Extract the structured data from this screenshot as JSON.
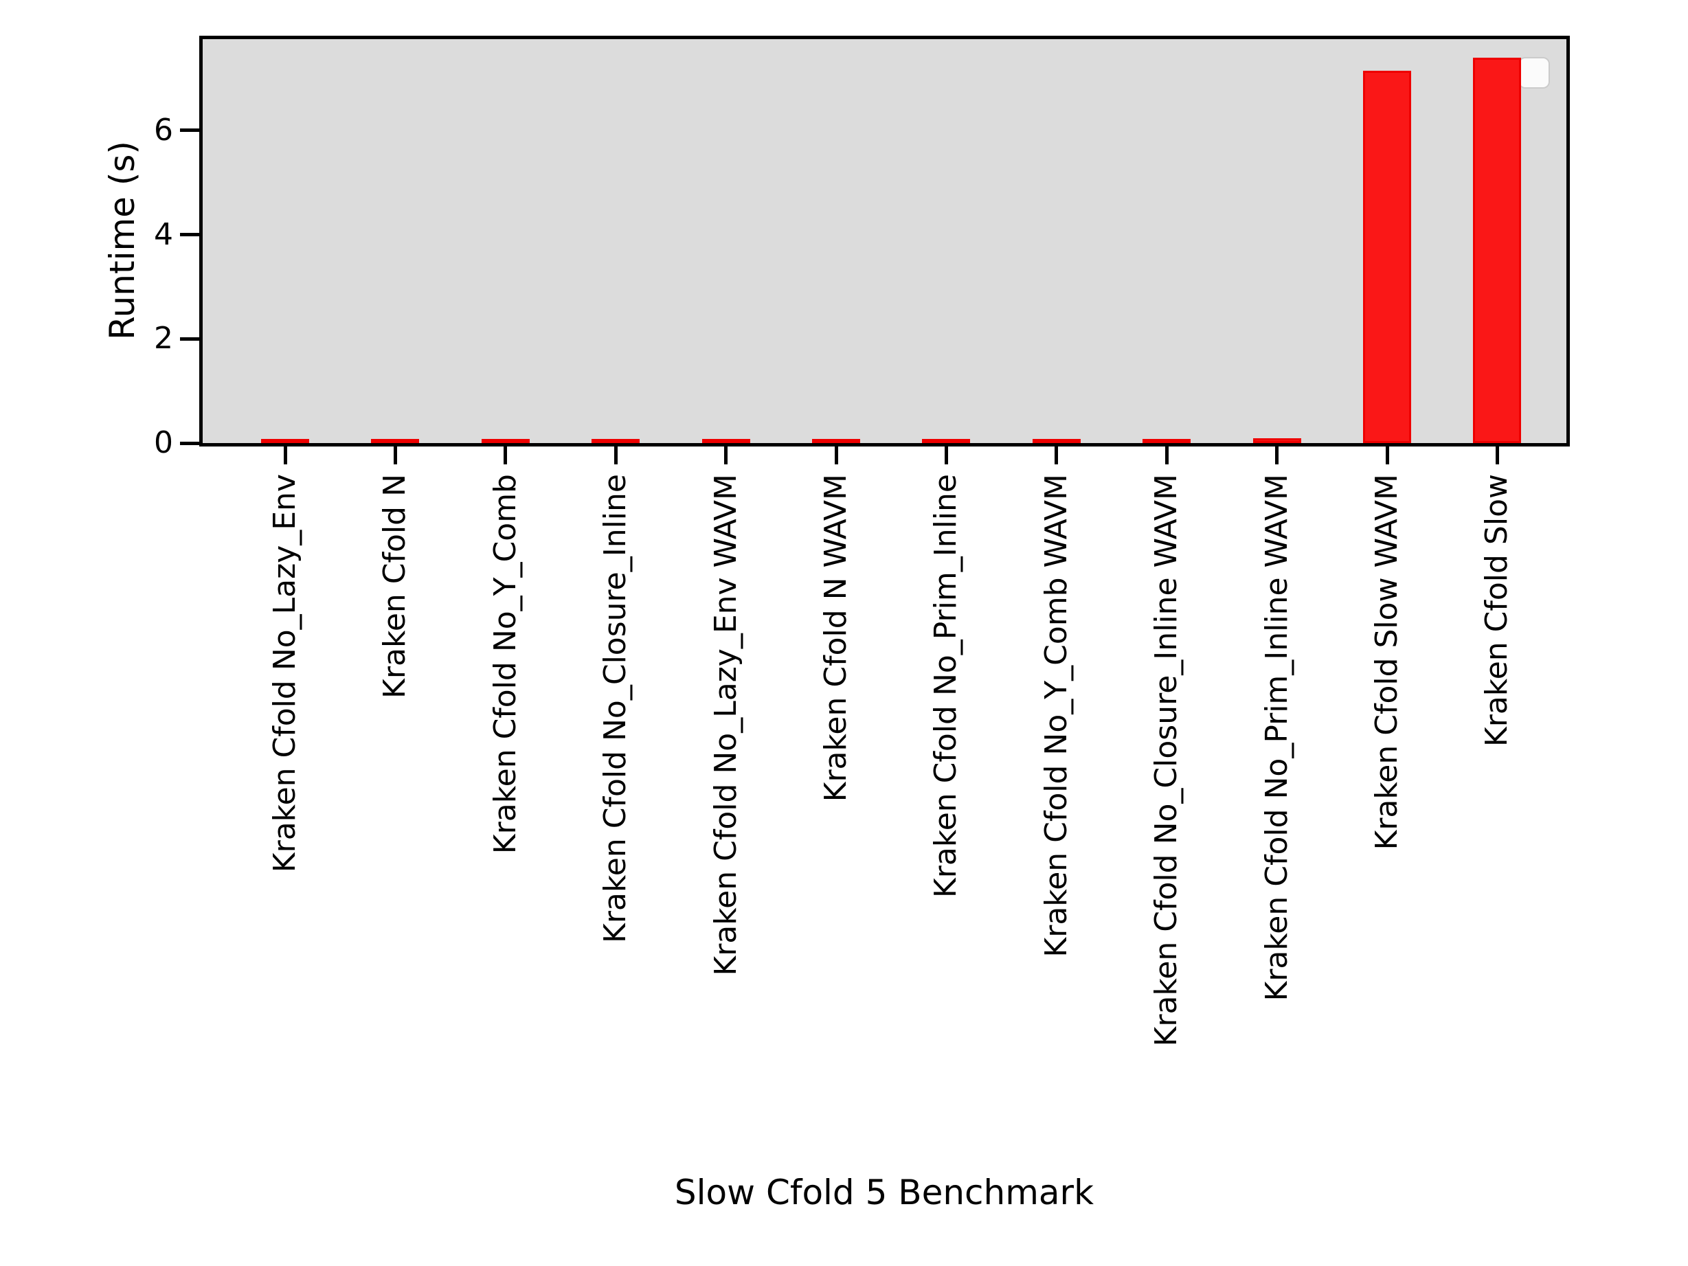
{
  "chart_data": {
    "type": "bar",
    "title": "",
    "xlabel": "Slow Cfold 5 Benchmark",
    "ylabel": "Runtime (s)",
    "categories": [
      "Kraken Cfold No_Lazy_Env",
      "Kraken Cfold N",
      "Kraken Cfold No_Y_Comb",
      "Kraken Cfold No_Closure_Inline",
      "Kraken Cfold No_Lazy_Env WAVM",
      "Kraken Cfold N WAVM",
      "Kraken Cfold No_Prim_Inline",
      "Kraken Cfold No_Y_Comb WAVM",
      "Kraken Cfold No_Closure_Inline WAVM",
      "Kraken Cfold No_Prim_Inline WAVM",
      "Kraken Cfold Slow WAVM",
      "Kraken Cfold Slow"
    ],
    "values": [
      0.04,
      0.04,
      0.04,
      0.05,
      0.06,
      0.06,
      0.06,
      0.06,
      0.08,
      0.09,
      7.15,
      7.4
    ],
    "yticks": [
      0,
      2,
      4,
      6
    ],
    "ytick_labels": [
      "0",
      "2",
      "4",
      "6"
    ],
    "ylim": [
      0,
      7.75
    ],
    "grid": false,
    "legend": {
      "visible": true,
      "position": "upper right",
      "entries": []
    },
    "colors": {
      "bar_fill": "#fa1717",
      "bar_edge": "#ee0000",
      "plot_background": "#dcdcdc",
      "spine": "#000000",
      "text": "#000000",
      "figure_background": "#ffffff"
    }
  }
}
